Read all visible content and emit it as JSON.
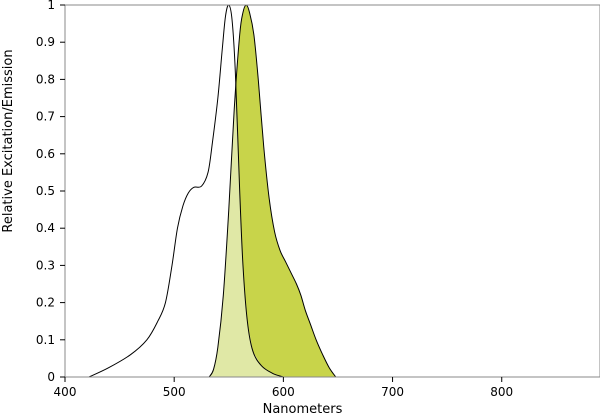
{
  "chart_data": {
    "type": "area",
    "title": "",
    "xlabel": "Nanometers",
    "ylabel": "Relative Excitation/Emission",
    "xlim": [
      400,
      890
    ],
    "ylim": [
      0,
      1
    ],
    "x_ticks": [
      400,
      500,
      600,
      700,
      800
    ],
    "y_ticks": [
      0,
      0.1,
      0.2,
      0.3,
      0.4,
      0.5,
      0.6,
      0.7,
      0.8,
      0.9,
      1
    ],
    "grid": false,
    "legend": "none",
    "colors": {
      "emission_fill": "#c8d44a",
      "overlap_fill": "#e0e8a6",
      "excitation_line": "#000000",
      "emission_line": "#000000",
      "frame": "#888888"
    },
    "series": [
      {
        "values": [
          [
            422,
            0
          ],
          [
            440,
            0.025
          ],
          [
            460,
            0.06
          ],
          [
            475,
            0.1
          ],
          [
            485,
            0.15
          ],
          [
            492,
            0.2
          ],
          [
            498,
            0.3
          ],
          [
            503,
            0.4
          ],
          [
            508,
            0.46
          ],
          [
            513,
            0.495
          ],
          [
            518,
            0.51
          ],
          [
            525,
            0.513
          ],
          [
            531,
            0.55
          ],
          [
            535,
            0.63
          ],
          [
            540,
            0.75
          ],
          [
            544,
            0.88
          ],
          [
            547,
            0.97
          ],
          [
            550,
            1.0
          ],
          [
            553,
            0.96
          ],
          [
            556,
            0.82
          ],
          [
            560,
            0.5
          ],
          [
            563,
            0.3
          ],
          [
            567,
            0.15
          ],
          [
            572,
            0.07
          ],
          [
            580,
            0.03
          ],
          [
            590,
            0.01
          ],
          [
            600,
            0
          ]
        ]
      },
      {
        "values": [
          [
            532,
            0
          ],
          [
            536,
            0.02
          ],
          [
            540,
            0.08
          ],
          [
            545,
            0.22
          ],
          [
            550,
            0.45
          ],
          [
            555,
            0.72
          ],
          [
            560,
            0.92
          ],
          [
            563,
            0.98
          ],
          [
            566,
            1.0
          ],
          [
            569,
            0.98
          ],
          [
            573,
            0.92
          ],
          [
            577,
            0.8
          ],
          [
            582,
            0.62
          ],
          [
            587,
            0.48
          ],
          [
            592,
            0.39
          ],
          [
            597,
            0.34
          ],
          [
            602,
            0.31
          ],
          [
            607,
            0.28
          ],
          [
            612,
            0.25
          ],
          [
            616,
            0.22
          ],
          [
            620,
            0.18
          ],
          [
            625,
            0.14
          ],
          [
            630,
            0.1
          ],
          [
            636,
            0.06
          ],
          [
            642,
            0.025
          ],
          [
            648,
            0
          ]
        ]
      }
    ]
  }
}
